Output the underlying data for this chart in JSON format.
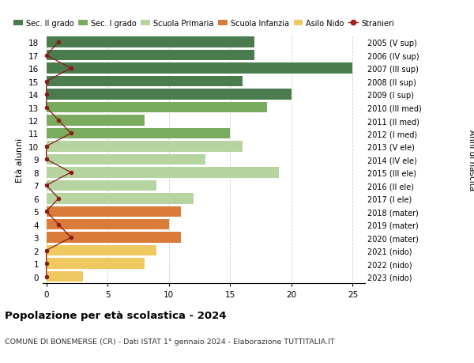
{
  "ages": [
    18,
    17,
    16,
    15,
    14,
    13,
    12,
    11,
    10,
    9,
    8,
    7,
    6,
    5,
    4,
    3,
    2,
    1,
    0
  ],
  "right_labels": [
    "2005 (V sup)",
    "2006 (IV sup)",
    "2007 (III sup)",
    "2008 (II sup)",
    "2009 (I sup)",
    "2010 (III med)",
    "2011 (II med)",
    "2012 (I med)",
    "2013 (V ele)",
    "2014 (IV ele)",
    "2015 (III ele)",
    "2016 (II ele)",
    "2017 (I ele)",
    "2018 (mater)",
    "2019 (mater)",
    "2020 (mater)",
    "2021 (nido)",
    "2022 (nido)",
    "2023 (nido)"
  ],
  "bar_values": [
    17,
    17,
    25,
    16,
    20,
    18,
    8,
    15,
    16,
    13,
    19,
    9,
    12,
    11,
    10,
    11,
    9,
    8,
    3
  ],
  "bar_colors": [
    "#4a7c4e",
    "#4a7c4e",
    "#4a7c4e",
    "#4a7c4e",
    "#4a7c4e",
    "#7aab5e",
    "#7aab5e",
    "#7aab5e",
    "#b5d4a0",
    "#b5d4a0",
    "#b5d4a0",
    "#b5d4a0",
    "#b5d4a0",
    "#d97c3a",
    "#d97c3a",
    "#d97c3a",
    "#f0c860",
    "#f0c860",
    "#f0c860"
  ],
  "stranieri_x": [
    1,
    0,
    2,
    0,
    0,
    0,
    1,
    2,
    0,
    0,
    2,
    0,
    1,
    0,
    1,
    2,
    0,
    0,
    0
  ],
  "legend_labels": [
    "Sec. II grado",
    "Sec. I grado",
    "Scuola Primaria",
    "Scuola Infanzia",
    "Asilo Nido",
    "Stranieri"
  ],
  "legend_colors": [
    "#4a7c4e",
    "#7aab5e",
    "#b5d4a0",
    "#d97c3a",
    "#f0c860",
    "#a02020"
  ],
  "title": "Popolazione per età scolastica - 2024",
  "subtitle": "COMUNE DI BONEMERSE (CR) - Dati ISTAT 1° gennaio 2024 - Elaborazione TUTTITALIA.IT",
  "right_axis_label": "Anni di nascita",
  "ylabel": "Età alunni",
  "xlim_max": 26,
  "background_color": "#ffffff",
  "grid_color": "#cccccc"
}
